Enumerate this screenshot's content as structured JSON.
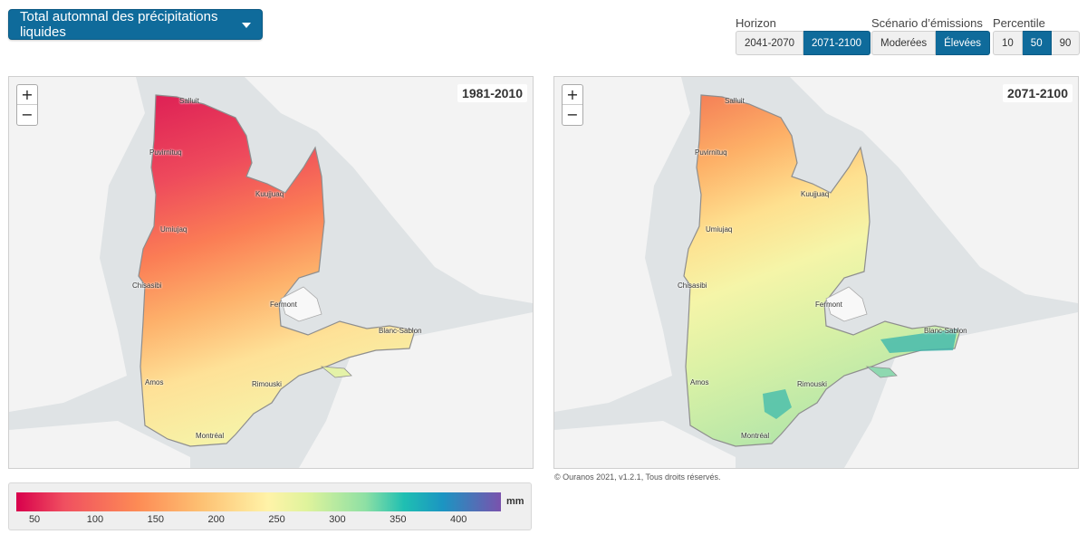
{
  "variable_selector": {
    "label": "Total automnal des précipitations liquides"
  },
  "controls": {
    "horizon": {
      "label": "Horizon",
      "options": [
        "2041-2070",
        "2071-2100"
      ],
      "selected": "2071-2100"
    },
    "scenario": {
      "label": "Scénario d’émissions",
      "options": [
        "Moderées",
        "Élevées"
      ],
      "selected": "Élevées"
    },
    "percentile": {
      "label": "Percentile",
      "options": [
        "10",
        "50",
        "90"
      ],
      "selected": "50"
    }
  },
  "maps": [
    {
      "period": "1981-2010"
    },
    {
      "period": "2071-2100"
    }
  ],
  "zoom": {
    "in": "+",
    "out": "−"
  },
  "cities": [
    "Salluit",
    "Puvirnituq",
    "Kuujjuaq",
    "Umiujaq",
    "Chisasibi",
    "Fermont",
    "Blanc-Sablon",
    "Amos",
    "Rimouski",
    "Montréal"
  ],
  "attribution": "© Ouranos 2021, v1.2.1, Tous droits réservés.",
  "legend": {
    "unit": "mm",
    "ticks": [
      "50",
      "100",
      "150",
      "200",
      "250",
      "300",
      "350",
      "400"
    ],
    "range": [
      35,
      435
    ]
  },
  "colors": {
    "accent": "#0f6b9b",
    "map_bg": "#dfe3e5",
    "land": "#f4f4f4"
  }
}
